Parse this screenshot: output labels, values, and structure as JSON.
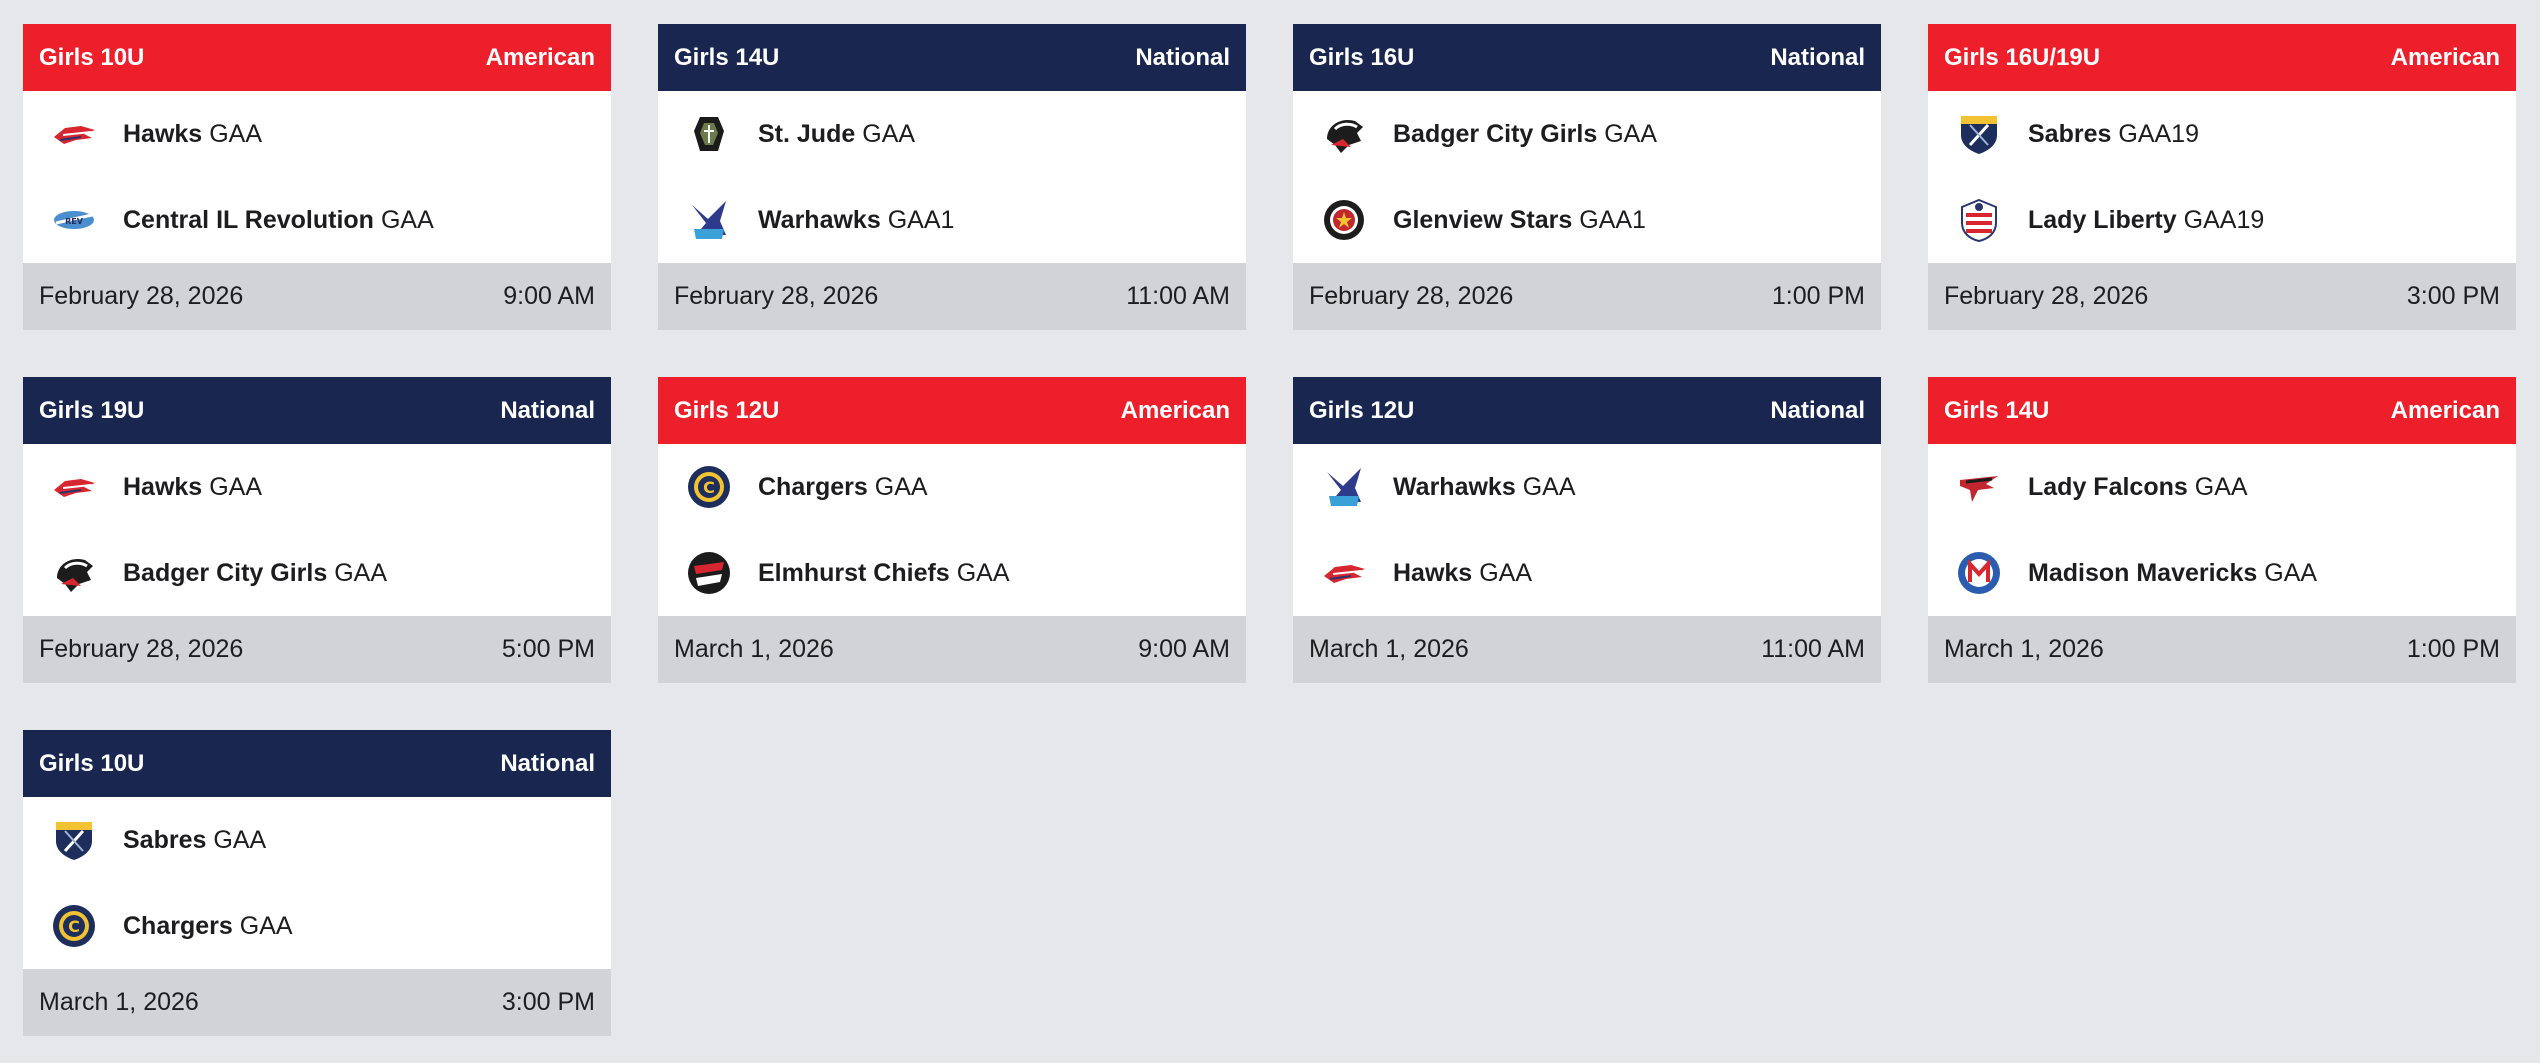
{
  "colors": {
    "american": "#ed1f2b",
    "national": "#19264f",
    "footer": "#d2d3d7",
    "background": "#e6e7eb"
  },
  "games": [
    {
      "division": "Girls 10U",
      "conference": "American",
      "color": "red",
      "teams": [
        {
          "name": "Hawks",
          "suffix": "GAA",
          "icon": "hawks-logo-icon"
        },
        {
          "name": "Central IL Revolution",
          "suffix": "GAA",
          "icon": "revolution-logo-icon"
        }
      ],
      "date": "February 28, 2026",
      "time": "9:00 AM"
    },
    {
      "division": "Girls 14U",
      "conference": "National",
      "color": "navy",
      "teams": [
        {
          "name": "St. Jude",
          "suffix": "GAA",
          "icon": "st-jude-logo-icon"
        },
        {
          "name": "Warhawks",
          "suffix": "GAA1",
          "icon": "warhawks-logo-icon"
        }
      ],
      "date": "February 28, 2026",
      "time": "11:00 AM"
    },
    {
      "division": "Girls 16U",
      "conference": "National",
      "color": "navy",
      "teams": [
        {
          "name": "Badger City Girls",
          "suffix": "GAA",
          "icon": "badger-logo-icon"
        },
        {
          "name": "Glenview Stars",
          "suffix": "GAA1",
          "icon": "stars-logo-icon"
        }
      ],
      "date": "February 28, 2026",
      "time": "1:00 PM"
    },
    {
      "division": "Girls 16U/19U",
      "conference": "American",
      "color": "red",
      "teams": [
        {
          "name": "Sabres",
          "suffix": "GAA19",
          "icon": "sabres-logo-icon"
        },
        {
          "name": "Lady Liberty",
          "suffix": "GAA19",
          "icon": "liberty-logo-icon"
        }
      ],
      "date": "February 28, 2026",
      "time": "3:00 PM"
    },
    {
      "division": "Girls 19U",
      "conference": "National",
      "color": "navy",
      "teams": [
        {
          "name": "Hawks",
          "suffix": "GAA",
          "icon": "hawks-logo-icon"
        },
        {
          "name": "Badger City Girls",
          "suffix": "GAA",
          "icon": "badger-logo-icon"
        }
      ],
      "date": "February 28, 2026",
      "time": "5:00 PM"
    },
    {
      "division": "Girls 12U",
      "conference": "American",
      "color": "red",
      "teams": [
        {
          "name": "Chargers",
          "suffix": "GAA",
          "icon": "chargers-logo-icon"
        },
        {
          "name": "Elmhurst Chiefs",
          "suffix": "GAA",
          "icon": "chiefs-logo-icon"
        }
      ],
      "date": "March 1, 2026",
      "time": "9:00 AM"
    },
    {
      "division": "Girls 12U",
      "conference": "National",
      "color": "navy",
      "teams": [
        {
          "name": "Warhawks",
          "suffix": "GAA",
          "icon": "warhawks-logo-icon"
        },
        {
          "name": "Hawks",
          "suffix": "GAA",
          "icon": "hawks-logo-icon"
        }
      ],
      "date": "March 1, 2026",
      "time": "11:00 AM"
    },
    {
      "division": "Girls 14U",
      "conference": "American",
      "color": "red",
      "teams": [
        {
          "name": "Lady Falcons",
          "suffix": "GAA",
          "icon": "falcons-logo-icon"
        },
        {
          "name": "Madison Mavericks",
          "suffix": "GAA",
          "icon": "mavericks-logo-icon"
        }
      ],
      "date": "March 1, 2026",
      "time": "1:00 PM"
    },
    {
      "division": "Girls 10U",
      "conference": "National",
      "color": "navy",
      "teams": [
        {
          "name": "Sabres",
          "suffix": "GAA",
          "icon": "sabres-logo-icon"
        },
        {
          "name": "Chargers",
          "suffix": "GAA",
          "icon": "chargers-logo-icon"
        }
      ],
      "date": "March 1, 2026",
      "time": "3:00 PM"
    }
  ]
}
